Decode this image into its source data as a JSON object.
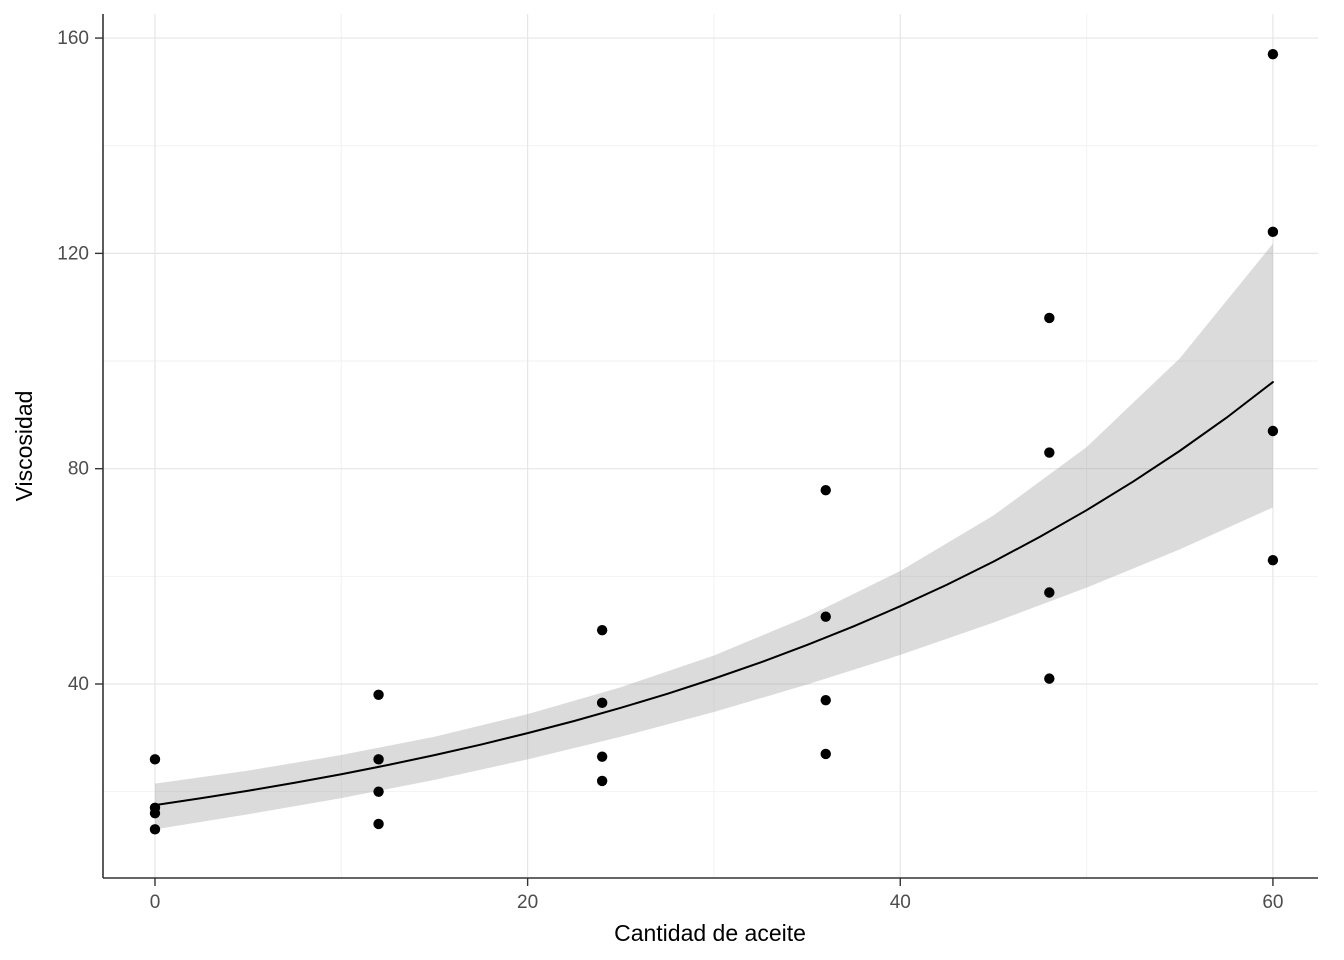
{
  "chart_data": {
    "type": "scatter",
    "title": "",
    "xlabel": "Cantidad de aceite",
    "ylabel": "Viscosidad",
    "x_ticks": [
      0,
      20,
      40,
      60
    ],
    "y_ticks": [
      40,
      80,
      120,
      160
    ],
    "x_minor": [
      10,
      30,
      50
    ],
    "y_minor": [
      20,
      60,
      100,
      140
    ],
    "xlim": [
      -2.79,
      62.42
    ],
    "ylim": [
      3.96,
      164.47
    ],
    "grid": true,
    "legend": "none",
    "points": [
      {
        "x": 0,
        "y": 26
      },
      {
        "x": 0,
        "y": 17
      },
      {
        "x": 0,
        "y": 16
      },
      {
        "x": 0,
        "y": 13
      },
      {
        "x": 12,
        "y": 38
      },
      {
        "x": 12,
        "y": 26
      },
      {
        "x": 12,
        "y": 20
      },
      {
        "x": 12,
        "y": 14
      },
      {
        "x": 24,
        "y": 50
      },
      {
        "x": 24,
        "y": 36.5
      },
      {
        "x": 24,
        "y": 26.5
      },
      {
        "x": 24,
        "y": 22
      },
      {
        "x": 36,
        "y": 76
      },
      {
        "x": 36,
        "y": 52.5
      },
      {
        "x": 36,
        "y": 37
      },
      {
        "x": 36,
        "y": 27
      },
      {
        "x": 48,
        "y": 108
      },
      {
        "x": 48,
        "y": 83
      },
      {
        "x": 48,
        "y": 57
      },
      {
        "x": 48,
        "y": 41
      },
      {
        "x": 60,
        "y": 157
      },
      {
        "x": 60,
        "y": 124
      },
      {
        "x": 60,
        "y": 87
      },
      {
        "x": 60,
        "y": 63
      }
    ],
    "smooth": {
      "model": "exponential fit y = 17.5 * exp(0.02837 * x) with confidence ribbon",
      "x": [
        0,
        2.5,
        5,
        7.5,
        10,
        12.5,
        15,
        17.5,
        20,
        22.5,
        25,
        27.5,
        30,
        32.5,
        35,
        37.5,
        40,
        42.5,
        45,
        47.5,
        50,
        52.5,
        55,
        57.5,
        60
      ],
      "fit": [
        17.5,
        18.79,
        20.17,
        21.65,
        23.24,
        24.95,
        26.79,
        28.75,
        30.87,
        33.13,
        35.57,
        38.18,
        41.0,
        44.0,
        47.26,
        50.71,
        54.45,
        58.44,
        62.74,
        67.35,
        72.29,
        77.61,
        83.31,
        89.44,
        96.09
      ],
      "ribbon_x": [
        0,
        5,
        10,
        15,
        20,
        25,
        30,
        35,
        40,
        45,
        50,
        55,
        60
      ],
      "lower": [
        13.0,
        15.8,
        18.8,
        22.2,
        26.0,
        30.2,
        34.8,
        39.9,
        45.4,
        51.4,
        57.9,
        65.0,
        72.8
      ],
      "upper": [
        21.5,
        23.9,
        26.8,
        30.2,
        34.4,
        39.4,
        45.3,
        52.5,
        61.0,
        71.3,
        84.0,
        100.5,
        121.8
      ]
    },
    "colors": {
      "background": "#ffffff",
      "panel_background": "#ffffff",
      "grid_major": "#e6e6e6",
      "grid_minor": "#f2f2f2",
      "axis_line": "#333333",
      "tick_mark": "#333333",
      "tick_label": "#4d4d4d",
      "axis_title": "#000000",
      "point": "#000000",
      "smooth_line": "#000000",
      "ribbon": "#999999",
      "ribbon_opacity": 0.35
    }
  }
}
